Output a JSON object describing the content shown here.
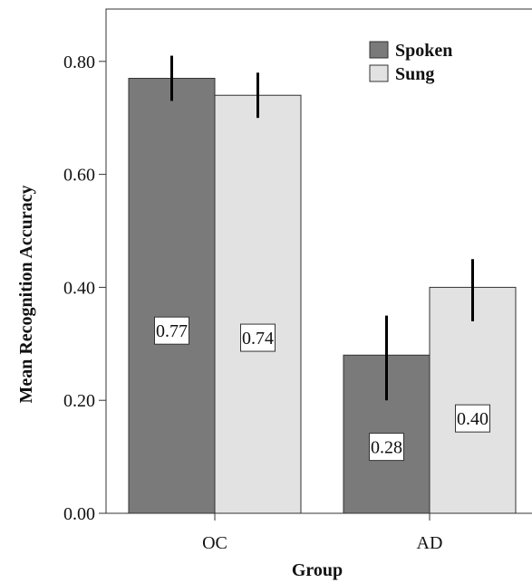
{
  "chart_data": {
    "type": "bar",
    "categories": [
      "OC",
      "AD"
    ],
    "series": [
      {
        "name": "Spoken",
        "values": [
          0.77,
          0.28
        ],
        "error_low": [
          0.73,
          0.2
        ],
        "error_high": [
          0.81,
          0.35
        ],
        "labels": [
          "0.77",
          "0.28"
        ]
      },
      {
        "name": "Sung",
        "values": [
          0.74,
          0.4
        ],
        "error_low": [
          0.7,
          0.34
        ],
        "error_high": [
          0.78,
          0.45
        ],
        "labels": [
          "0.74",
          "0.40"
        ]
      }
    ],
    "title": "",
    "xlabel": "Group",
    "ylabel": "Mean Recognition Accuracy",
    "ylim": [
      0,
      0.9
    ],
    "yticks": [
      "0.00",
      "0.20",
      "0.40",
      "0.60",
      "0.80"
    ],
    "ytick_values": [
      0.0,
      0.2,
      0.4,
      0.6,
      0.8
    ],
    "legend_position": "top-right",
    "grid": false,
    "colors": {
      "Spoken": "#7a7a7a",
      "Sung": "#e2e2e2",
      "error_bar": "#000000",
      "axis": "#333333"
    }
  }
}
